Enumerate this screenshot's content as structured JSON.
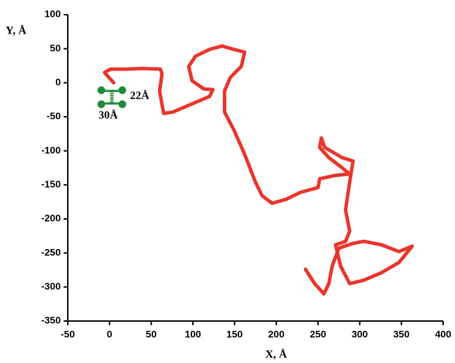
{
  "chart_data": {
    "type": "line",
    "x_label": "X, Å",
    "y_label": "Y, Å",
    "annotations": [
      "22Å",
      "30Å"
    ],
    "color": "#e8362c",
    "x": [
      5,
      -6,
      1,
      20,
      40,
      61,
      63,
      60,
      65,
      76,
      99,
      120,
      124,
      113,
      99,
      95,
      103,
      120,
      135,
      149,
      162,
      158,
      145,
      138,
      138,
      149,
      162,
      175,
      183,
      195,
      212,
      229,
      250,
      252,
      271,
      288,
      279,
      263,
      252,
      254,
      258,
      279,
      292,
      288,
      283,
      288,
      283,
      271,
      277,
      288,
      305,
      326,
      347,
      363,
      347,
      326,
      305,
      292,
      275,
      267,
      263,
      257,
      246,
      235
    ],
    "values": [
      0,
      15,
      20,
      20,
      21,
      20,
      13,
      -12,
      -45,
      -43,
      -31,
      -20,
      -10,
      -9,
      3,
      24,
      39,
      49,
      54,
      49,
      45,
      24,
      8,
      -12,
      -43,
      -69,
      -105,
      -146,
      -166,
      -177,
      -171,
      -161,
      -154,
      -141,
      -136,
      -134,
      -125,
      -110,
      -95,
      -81,
      -95,
      -110,
      -115,
      -146,
      -187,
      -218,
      -233,
      -238,
      -269,
      -295,
      -290,
      -279,
      -264,
      -240,
      -248,
      -238,
      -233,
      -236,
      -243,
      -269,
      -295,
      -310,
      -295,
      -274
    ],
    "xlim": [
      -50,
      400
    ],
    "ylim": [
      -350,
      100
    ],
    "xticks": [
      -50,
      0,
      50,
      100,
      150,
      200,
      250,
      300,
      350,
      400
    ],
    "yticks": [
      -350,
      -300,
      -250,
      -200,
      -150,
      -100,
      -50,
      0,
      50,
      100
    ]
  }
}
